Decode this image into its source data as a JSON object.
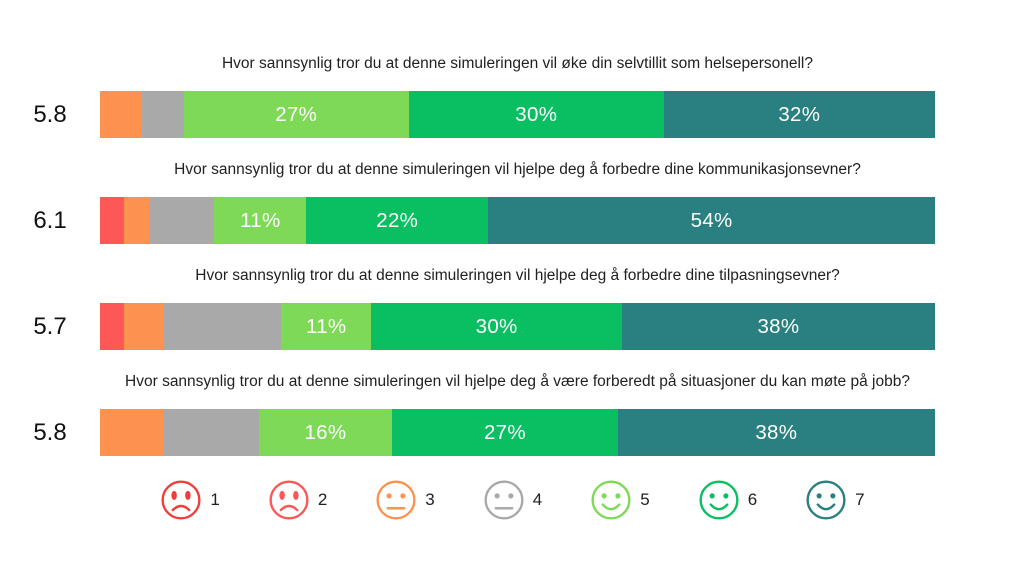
{
  "chart_data": {
    "type": "bar",
    "stacked": true,
    "orientation": "horizontal",
    "scale_min": 1,
    "scale_max": 7,
    "rating_colors": {
      "1": "#f23d3d",
      "2": "#fd5757",
      "3": "#fd9250",
      "4": "#a9a9a9",
      "5": "#7ed957",
      "6": "#0abf62",
      "7": "#2a8080"
    },
    "rows": [
      {
        "question": "Hvor sannsynlig tror du at denne simuleringen vil øke din selvtillit som helsepersonell?",
        "mean_score": "5.8",
        "segments": [
          {
            "rating": 3,
            "pct": 5.0,
            "label": ""
          },
          {
            "rating": 4,
            "pct": 5.0,
            "label": ""
          },
          {
            "rating": 5,
            "pct": 27.0,
            "label": "27%"
          },
          {
            "rating": 6,
            "pct": 30.5,
            "label": "30%"
          },
          {
            "rating": 7,
            "pct": 32.5,
            "label": "32%"
          }
        ]
      },
      {
        "question": "Hvor sannsynlig tror du at denne simuleringen vil hjelpe deg å forbedre dine kommunikasjonsevner?",
        "mean_score": "6.1",
        "segments": [
          {
            "rating": 2,
            "pct": 2.9,
            "label": ""
          },
          {
            "rating": 3,
            "pct": 3.0,
            "label": ""
          },
          {
            "rating": 4,
            "pct": 7.8,
            "label": ""
          },
          {
            "rating": 5,
            "pct": 11.0,
            "label": "11%"
          },
          {
            "rating": 6,
            "pct": 21.8,
            "label": "22%"
          },
          {
            "rating": 7,
            "pct": 53.5,
            "label": "54%"
          }
        ]
      },
      {
        "question": "Hvor sannsynlig tror du at denne simuleringen vil hjelpe deg å forbedre dine tilpasningsevner?",
        "mean_score": "5.7",
        "segments": [
          {
            "rating": 2,
            "pct": 2.9,
            "label": ""
          },
          {
            "rating": 3,
            "pct": 4.8,
            "label": ""
          },
          {
            "rating": 4,
            "pct": 14.0,
            "label": ""
          },
          {
            "rating": 5,
            "pct": 10.8,
            "label": "11%"
          },
          {
            "rating": 6,
            "pct": 30.0,
            "label": "30%"
          },
          {
            "rating": 7,
            "pct": 37.5,
            "label": "38%"
          }
        ]
      },
      {
        "question": "Hvor sannsynlig tror du at denne simuleringen vil hjelpe deg å være forberedt på situasjoner du kan møte på jobb?",
        "mean_score": "5.8",
        "segments": [
          {
            "rating": 3,
            "pct": 7.7,
            "label": ""
          },
          {
            "rating": 4,
            "pct": 11.3,
            "label": ""
          },
          {
            "rating": 5,
            "pct": 16.0,
            "label": "16%"
          },
          {
            "rating": 6,
            "pct": 27.0,
            "label": "27%"
          },
          {
            "rating": 7,
            "pct": 38.0,
            "label": "38%"
          }
        ]
      }
    ],
    "legend": [
      {
        "value": "1",
        "mood": "sad",
        "color": "#f23d3d"
      },
      {
        "value": "2",
        "mood": "sad",
        "color": "#fd5757"
      },
      {
        "value": "3",
        "mood": "neutral",
        "color": "#fd9250"
      },
      {
        "value": "4",
        "mood": "neutral",
        "color": "#a9a9a9"
      },
      {
        "value": "5",
        "mood": "happy",
        "color": "#7ed957"
      },
      {
        "value": "6",
        "mood": "happy",
        "color": "#0abf62"
      },
      {
        "value": "7",
        "mood": "happy",
        "color": "#2a8080"
      }
    ]
  }
}
